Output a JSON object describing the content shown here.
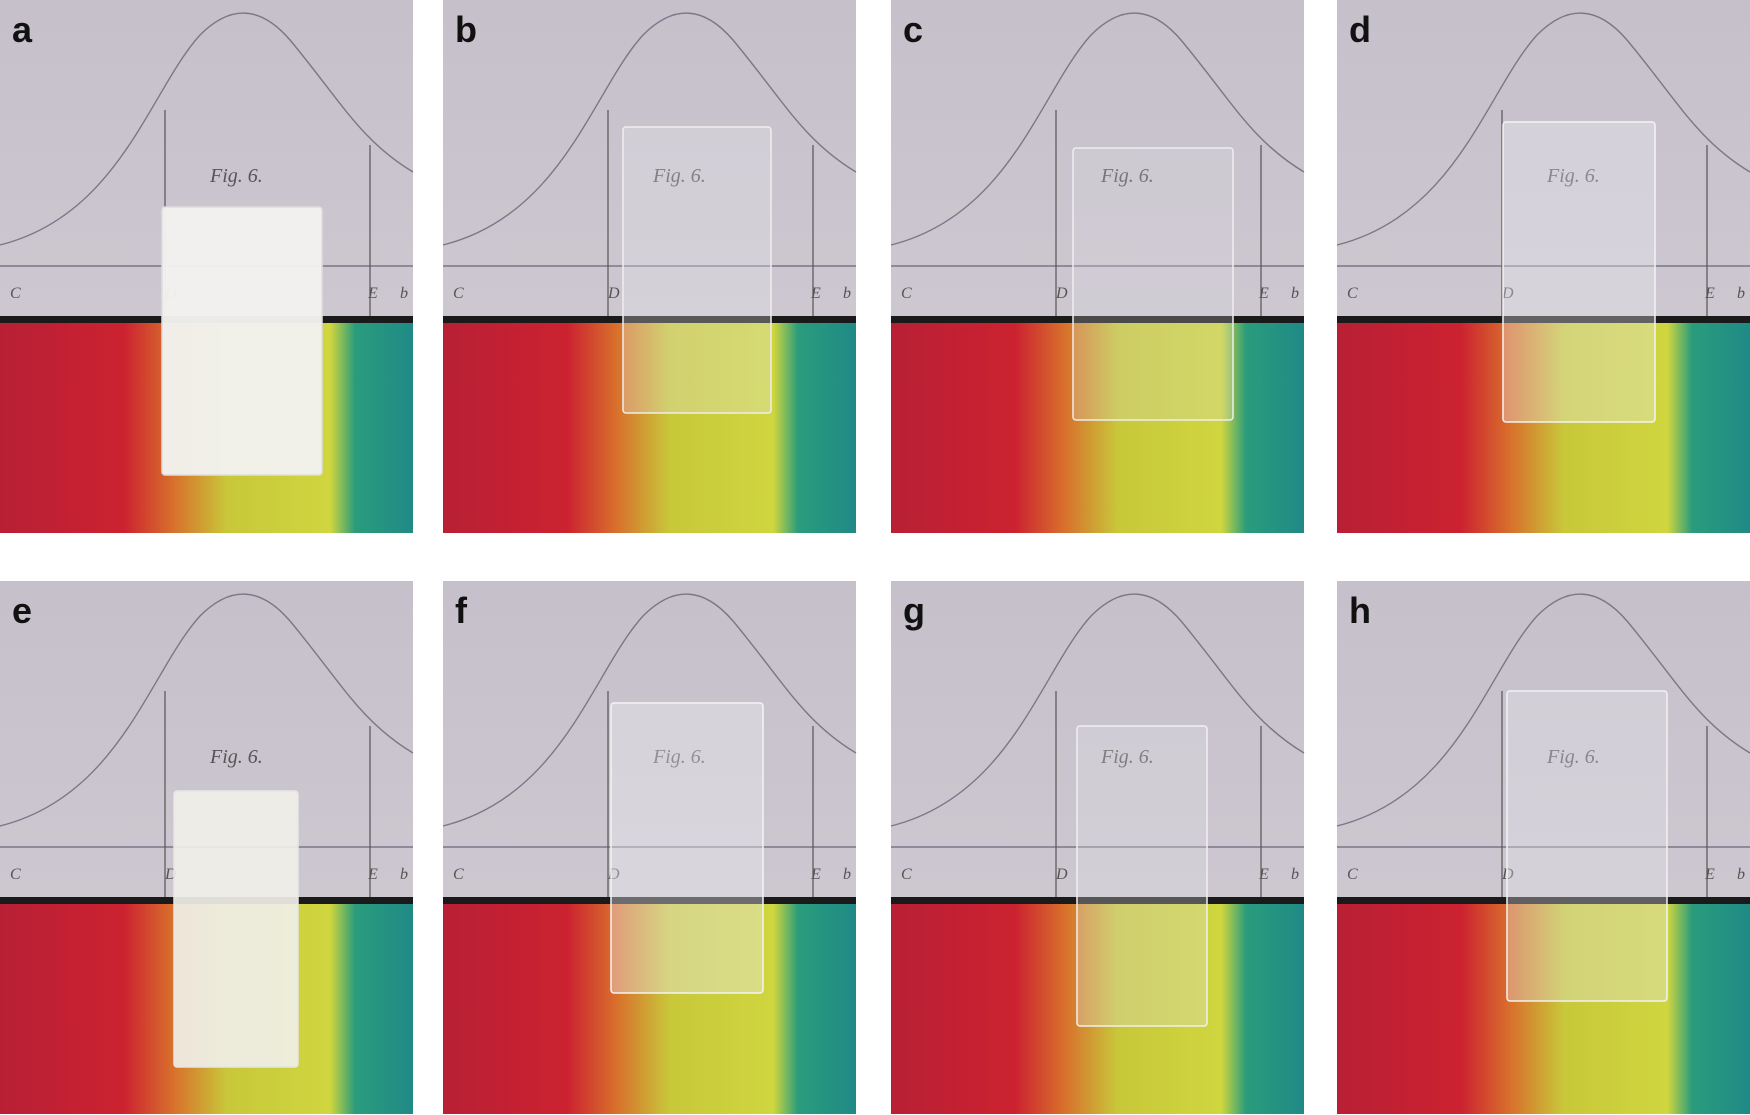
{
  "panels": [
    {
      "label": "a"
    },
    {
      "label": "b"
    },
    {
      "label": "c"
    },
    {
      "label": "d"
    },
    {
      "label": "e"
    },
    {
      "label": "f"
    },
    {
      "label": "g"
    },
    {
      "label": "h"
    }
  ],
  "photo_text": {
    "figure": "Fig. 6.",
    "marks": [
      "C",
      "D",
      "E",
      "b"
    ]
  }
}
